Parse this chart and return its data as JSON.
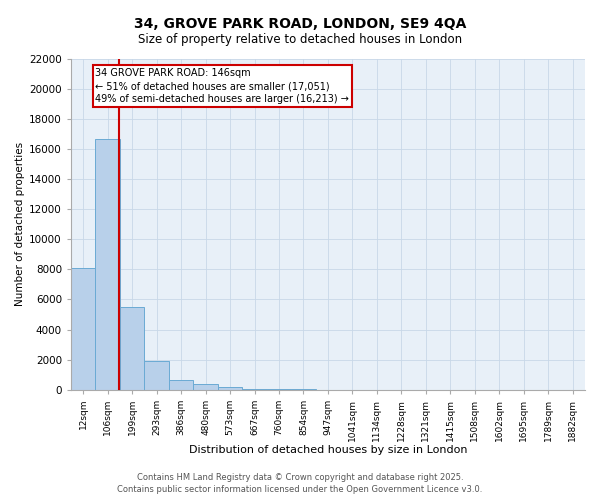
{
  "title_line1": "34, GROVE PARK ROAD, LONDON, SE9 4QA",
  "title_line2": "Size of property relative to detached houses in London",
  "xlabel": "Distribution of detached houses by size in London",
  "ylabel": "Number of detached properties",
  "categories": [
    "12sqm",
    "106sqm",
    "199sqm",
    "293sqm",
    "386sqm",
    "480sqm",
    "573sqm",
    "667sqm",
    "760sqm",
    "854sqm",
    "947sqm",
    "1041sqm",
    "1134sqm",
    "1228sqm",
    "1321sqm",
    "1415sqm",
    "1508sqm",
    "1602sqm",
    "1695sqm",
    "1789sqm",
    "1882sqm"
  ],
  "values": [
    8100,
    16700,
    5500,
    1900,
    650,
    350,
    150,
    60,
    30,
    15,
    8,
    5,
    3,
    2,
    1,
    1,
    0,
    0,
    0,
    0,
    0
  ],
  "bar_color": "#b8d0ea",
  "bar_edge_color": "#6aaad4",
  "annotation_text": "34 GROVE PARK ROAD: 146sqm\n← 51% of detached houses are smaller (17,051)\n49% of semi-detached houses are larger (16,213) →",
  "annotation_box_color": "#cc0000",
  "ylim": [
    0,
    22000
  ],
  "yticks": [
    0,
    2000,
    4000,
    6000,
    8000,
    10000,
    12000,
    14000,
    16000,
    18000,
    20000,
    22000
  ],
  "grid_color": "#c8d8e8",
  "bg_color": "#e8f0f8",
  "footer_line1": "Contains HM Land Registry data © Crown copyright and database right 2025.",
  "footer_line2": "Contains public sector information licensed under the Open Government Licence v3.0."
}
